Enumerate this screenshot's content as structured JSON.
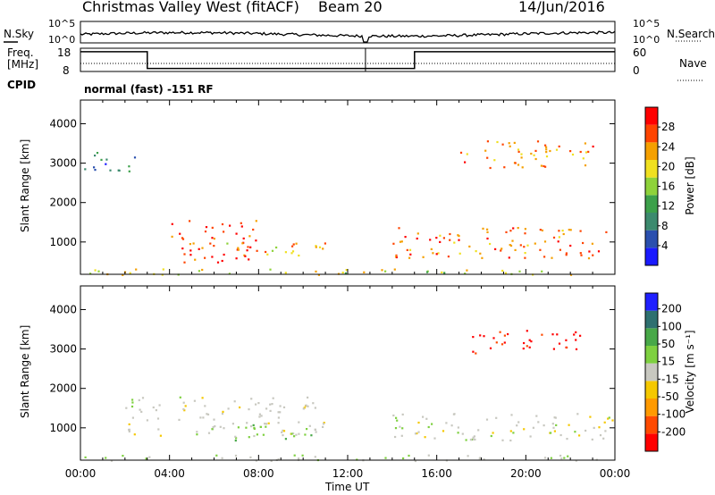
{
  "header": {
    "title": "Christmas Valley West (fitACF)",
    "beam": "Beam 20",
    "date": "14/Jun/2016"
  },
  "noise_panel": {
    "left_label": "N.Sky",
    "right_label": "N.Search",
    "left_ticks": [
      "10^5",
      "10^0"
    ],
    "right_ticks": [
      "10^5",
      "10^0"
    ]
  },
  "freq_panel": {
    "left_label_1": "Freq.",
    "left_label_2": "[MHz]",
    "left_ticks": [
      "18",
      "8"
    ],
    "right_label": "Nave",
    "right_ticks": [
      "60",
      "0"
    ]
  },
  "cpid": {
    "label": "CPID",
    "text": "normal (fast) -151 RF"
  },
  "x_axis": {
    "label": "Time UT",
    "ticks": [
      "00:00",
      "04:00",
      "08:00",
      "12:00",
      "16:00",
      "20:00",
      "00:00"
    ]
  },
  "power_panel": {
    "ylabel": "Slant Range [km]",
    "yticks": [
      "4000",
      "3000",
      "2000",
      "1000"
    ],
    "cbar_label": "Power [dB]",
    "cbar_ticks": [
      "28",
      "24",
      "20",
      "16",
      "12",
      "8",
      "4"
    ]
  },
  "velocity_panel": {
    "ylabel": "Slant Range [km]",
    "yticks": [
      "4000",
      "3000",
      "2000",
      "1000"
    ],
    "cbar_label": "Velocity [m s⁻¹]",
    "cbar_ticks": [
      "200",
      "100",
      "50",
      "15",
      "-15",
      "-50",
      "-100",
      "-200"
    ]
  },
  "chart_data": [
    {
      "type": "heatmap",
      "title": "Power",
      "xlabel": "Time UT",
      "ylabel": "Slant Range [km]",
      "xlim_hours": [
        0,
        24
      ],
      "ylim_km": [
        180,
        4600
      ],
      "colorbar": {
        "label": "Power [dB]",
        "range": [
          0,
          30
        ],
        "colors": [
          "#1a1aff",
          "#2a4fae",
          "#3c8a6e",
          "#3ca04a",
          "#8ed23a",
          "#f0e020",
          "#f5a000",
          "#ff4400",
          "#ff0000"
        ]
      },
      "regions": [
        {
          "t": [
            0.0,
            24.0
          ],
          "r": [
            180,
            330
          ],
          "value": 18
        },
        {
          "t": [
            4.0,
            8.0
          ],
          "r": [
            500,
            1600
          ],
          "value": 26
        },
        {
          "t": [
            6.5,
            11.0
          ],
          "r": [
            600,
            1000
          ],
          "value": 20
        },
        {
          "t": [
            14.0,
            24.0
          ],
          "r": [
            600,
            1400
          ],
          "value": 24
        },
        {
          "t": [
            17.0,
            23.0
          ],
          "r": [
            2900,
            3600
          ],
          "value": 22
        },
        {
          "t": [
            0.0,
            2.5
          ],
          "r": [
            2800,
            3300
          ],
          "value": 8
        }
      ]
    },
    {
      "type": "heatmap",
      "title": "Velocity",
      "xlabel": "Time UT",
      "ylabel": "Slant Range [km]",
      "xlim_hours": [
        0,
        24
      ],
      "ylim_km": [
        180,
        4600
      ],
      "colorbar": {
        "label": "Velocity [m s⁻¹]",
        "range": [
          -250,
          250
        ],
        "colors": [
          "#ff0000",
          "#ff4a00",
          "#ff9a00",
          "#f5c800",
          "#c8c8c0",
          "#7ed040",
          "#48a848",
          "#2e7070",
          "#2020ff"
        ]
      },
      "regions": [
        {
          "t": [
            0.0,
            24.0
          ],
          "r": [
            180,
            330
          ],
          "value": 20
        },
        {
          "t": [
            2.0,
            11.0
          ],
          "r": [
            800,
            1800
          ],
          "value": 0
        },
        {
          "t": [
            6.5,
            10.5
          ],
          "r": [
            700,
            1100
          ],
          "value": 60
        },
        {
          "t": [
            14.0,
            24.0
          ],
          "r": [
            700,
            1400
          ],
          "value": 0
        },
        {
          "t": [
            17.5,
            22.5
          ],
          "r": [
            2900,
            3500
          ],
          "value": -220
        }
      ]
    }
  ]
}
